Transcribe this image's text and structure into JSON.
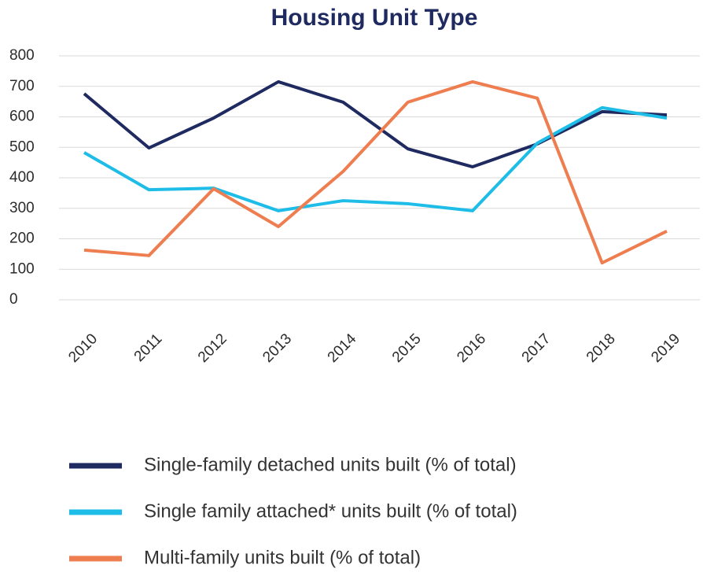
{
  "chart_data": {
    "type": "line",
    "title": "Housing Unit Type",
    "categories": [
      "2010",
      "2011",
      "2012",
      "2013",
      "2014",
      "2015",
      "2016",
      "2017",
      "2018",
      "2019"
    ],
    "series": [
      {
        "name": "Single-family detached units built (% of total)",
        "color": "#1f2a60",
        "values": [
          676,
          498,
          596,
          715,
          648,
          495,
          436,
          511,
          617,
          606
        ]
      },
      {
        "name": "Single family attached* units built (% of total)",
        "color": "#1ebde8",
        "values": [
          483,
          361,
          366,
          292,
          325,
          315,
          292,
          514,
          630,
          596
        ]
      },
      {
        "name": "Multi-family units built (% of total)",
        "color": "#ee7d4f",
        "values": [
          163,
          145,
          364,
          240,
          421,
          648,
          715,
          661,
          121,
          225
        ]
      }
    ],
    "ylim": [
      0,
      800
    ],
    "yticks": [
      0,
      100,
      200,
      300,
      400,
      500,
      600,
      700,
      800
    ],
    "grid": true,
    "legend": "bottom"
  }
}
